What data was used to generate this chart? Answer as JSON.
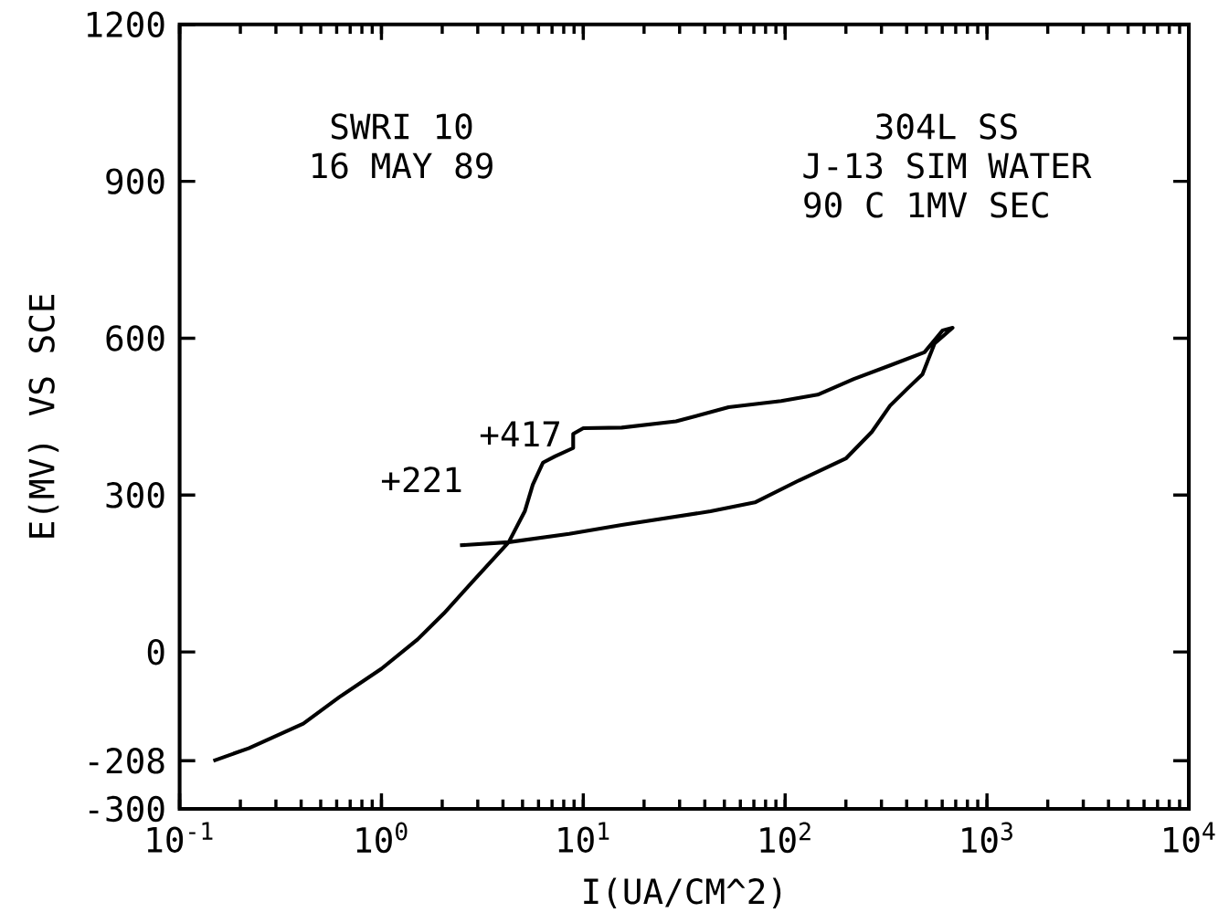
{
  "chart_data": {
    "type": "line",
    "xlabel": "I(UA/CM^2)",
    "ylabel": "E(MV) VS SCE",
    "annotations": [
      "SWRI 10",
      "16 MAY 89",
      "304L SS",
      "J-13 SIM WATER",
      "90 C   1MV SEC",
      {
        "text": "+417",
        "x": 8.9,
        "y": 417
      },
      "+221"
    ],
    "log": "x",
    "grid": false,
    "marker": "none",
    "line_style": "solid",
    "xlim": [
      0.1,
      10000
    ],
    "ylim": [
      -300,
      1200
    ],
    "xticks": [
      {
        "value": 0.1,
        "label": "10$^{-1}$"
      },
      {
        "value": 1,
        "label": "10$^{0}$"
      },
      {
        "value": 10,
        "label": "10$^{1}$"
      },
      {
        "value": 100,
        "label": "10$^{2}$"
      },
      {
        "value": 1000,
        "label": "10$^{3}$"
      },
      {
        "value": 10000,
        "label": "10$^{4}$"
      }
    ],
    "yticks": [
      -300,
      -208,
      0,
      300,
      600,
      900,
      1200
    ],
    "series": [
      {
        "color": "#000000",
        "x": [
          0.147,
          0.22,
          0.41,
          0.62,
          1.0,
          1.51,
          2.04,
          2.82,
          4.27,
          5.13,
          5.62,
          6.31,
          7.24,
          8.91,
          8.91,
          10.0,
          15.5,
          28.8,
          52.5,
          95.5,
          145,
          219,
          331,
          490,
          603,
          676,
          550,
          479,
          407,
          331,
          269,
          200,
          117,
          70.8,
          42.7,
          15.5,
          8.51,
          4.27,
          2.45
        ],
        "values": [
          -208,
          -184,
          -137,
          -86,
          -32,
          24,
          74,
          134,
          210,
          269,
          320,
          362,
          374,
          390,
          417,
          428,
          429,
          441,
          468,
          480,
          492,
          522,
          548,
          573,
          615,
          620,
          590,
          531,
          505,
          471,
          421,
          370,
          328,
          286,
          269,
          243,
          226,
          210,
          204
        ]
      }
    ]
  }
}
